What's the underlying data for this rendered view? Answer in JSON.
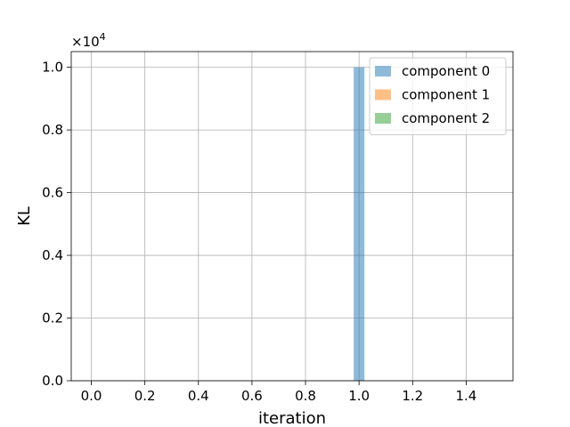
{
  "chart_data": {
    "type": "bar",
    "xlabel": "iteration",
    "ylabel": "KL",
    "offset_text": {
      "base": "×10",
      "exponent": "4"
    },
    "xlim": [
      -0.075,
      1.575
    ],
    "ylim": [
      0,
      10500
    ],
    "x_ticks": [
      0.0,
      0.2,
      0.4,
      0.6,
      0.8,
      1.0,
      1.2,
      1.4
    ],
    "x_tick_labels": [
      "0.0",
      "0.2",
      "0.4",
      "0.6",
      "0.8",
      "1.0",
      "1.2",
      "1.4"
    ],
    "y_ticks": [
      0,
      2000,
      4000,
      6000,
      8000,
      10000
    ],
    "y_tick_labels": [
      "0.0",
      "0.2",
      "0.4",
      "0.6",
      "0.8",
      "1.0"
    ],
    "bar_width": 0.04,
    "grid": true,
    "legend_position": "top-right",
    "series": [
      {
        "name": "component 0",
        "color": "#1f77b4",
        "alpha": 0.5,
        "bars": [
          {
            "x": 1.0,
            "value": 10000
          }
        ]
      },
      {
        "name": "component 1",
        "color": "#ff7f0e",
        "alpha": 0.5,
        "bars": []
      },
      {
        "name": "component 2",
        "color": "#2ca02c",
        "alpha": 0.5,
        "bars": []
      }
    ]
  }
}
